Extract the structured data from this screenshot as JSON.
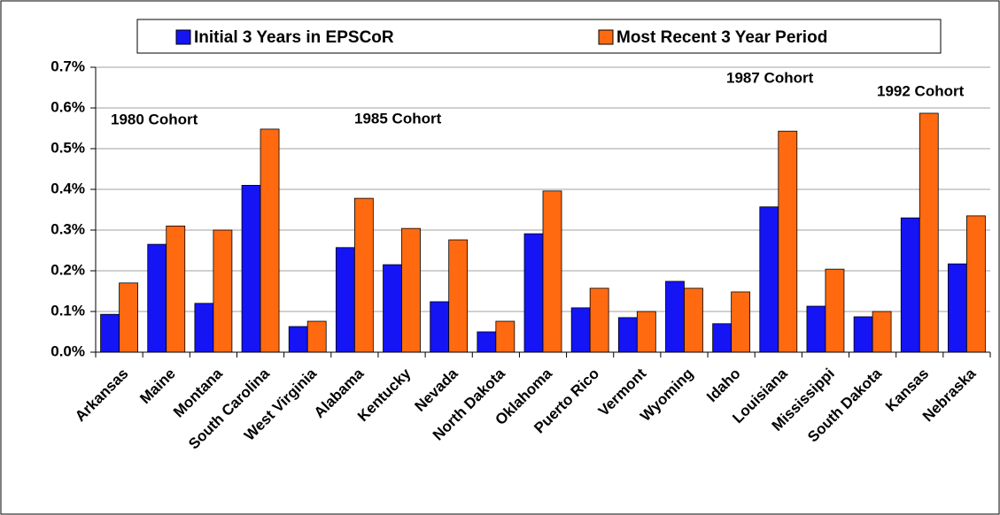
{
  "chart_data": {
    "type": "bar",
    "categories": [
      "Arkansas",
      "Maine",
      "Montana",
      "South Carolina",
      "West Virginia",
      "Alabama",
      "Kentucky",
      "Nevada",
      "North Dakota",
      "Oklahoma",
      "Puerto Rico",
      "Vermont",
      "Wyoming",
      "Idaho",
      "Louisiana",
      "Mississippi",
      "South Dakota",
      "Kansas",
      "Nebraska"
    ],
    "series": [
      {
        "name": "Initial 3 Years in EPSCoR",
        "color": "#1414f5",
        "values": [
          0.093,
          0.265,
          0.12,
          0.41,
          0.063,
          0.257,
          0.215,
          0.124,
          0.05,
          0.291,
          0.109,
          0.085,
          0.174,
          0.07,
          0.357,
          0.113,
          0.087,
          0.33,
          0.217
        ]
      },
      {
        "name": "Most Recent 3 Year Period",
        "color": "#ff6a10",
        "values": [
          0.17,
          0.31,
          0.3,
          0.548,
          0.076,
          0.378,
          0.304,
          0.276,
          0.076,
          0.396,
          0.157,
          0.1,
          0.157,
          0.148,
          0.543,
          0.204,
          0.1,
          0.587,
          0.335
        ]
      }
    ],
    "ylim": [
      0,
      0.7
    ],
    "yticks": [
      {
        "value": 0,
        "label": "0.0%"
      },
      {
        "value": 0.1,
        "label": "0.1%"
      },
      {
        "value": 0.2,
        "label": "0.2%"
      },
      {
        "value": 0.3,
        "label": "0.3%"
      },
      {
        "value": 0.4,
        "label": "0.4%"
      },
      {
        "value": 0.5,
        "label": "0.5%"
      },
      {
        "value": 0.6,
        "label": "0.6%"
      },
      {
        "value": 0.7,
        "label": "0.7%"
      }
    ],
    "grid": true,
    "annotations": [
      "1980 Cohort",
      "1985 Cohort",
      "1987 Cohort",
      "1992 Cohort"
    ]
  }
}
